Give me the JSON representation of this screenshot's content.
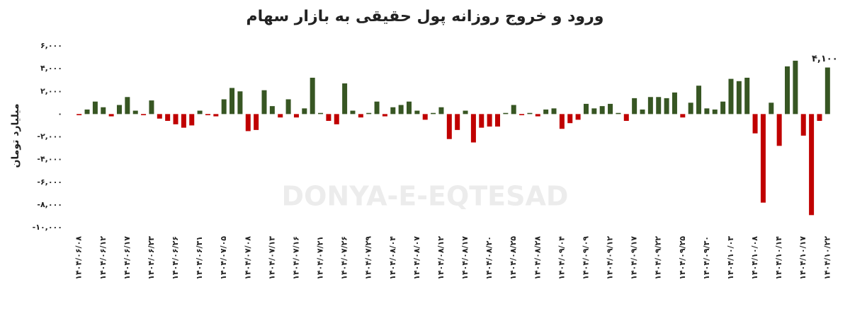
{
  "chart_data": {
    "type": "bar",
    "title": "ورود و خروج روزانه پول حقیقی به بازار سهام",
    "ylabel": "میلیارد تومان",
    "watermark": "DONYA-E-EQTESAD",
    "colors": {
      "positive": "#375623",
      "negative": "#c00000"
    },
    "categories": [
      "۱۴۰۴/۰۶/۰۸",
      null,
      null,
      "۱۴۰۴/۰۶/۱۲",
      null,
      null,
      "۱۴۰۴/۰۶/۱۷",
      null,
      null,
      "۱۴۰۴/۰۶/۲۳",
      null,
      null,
      "۱۴۰۴/۰۶/۲۶",
      null,
      null,
      "۱۴۰۴/۰۶/۳۱",
      null,
      null,
      "۱۴۰۴/۰۷/۰۵",
      null,
      null,
      "۱۴۰۴/۰۷/۰۸",
      null,
      null,
      "۱۴۰۴/۰۷/۱۳",
      null,
      null,
      "۱۴۰۴/۰۷/۱۶",
      null,
      null,
      "۱۴۰۴/۰۷/۲۱",
      null,
      null,
      "۱۴۰۴/۰۷/۲۶",
      null,
      null,
      "۱۴۰۴/۰۷/۲۹",
      null,
      null,
      "۱۴۰۴/۰۸/۰۴",
      null,
      null,
      "۱۴۰۴/۰۸/۰۷",
      null,
      null,
      "۱۴۰۴/۰۸/۱۲",
      null,
      null,
      "۱۴۰۴/۰۸/۱۷",
      null,
      null,
      "۱۴۰۴/۰۸/۲۰",
      null,
      null,
      "۱۴۰۴/۰۸/۲۵",
      null,
      null,
      "۱۴۰۴/۰۸/۲۸",
      null,
      null,
      "۱۴۰۴/۰۹/۰۴",
      null,
      null,
      "۱۴۰۴/۰۹/۰۹",
      null,
      null,
      "۱۴۰۴/۰۹/۱۲",
      null,
      null,
      "۱۴۰۴/۰۹/۱۷",
      null,
      null,
      "۱۴۰۴/۰۹/۲۲",
      null,
      null,
      "۱۴۰۴/۰۹/۲۵",
      null,
      null,
      "۱۴۰۴/۰۹/۳۰",
      null,
      null,
      "۱۴۰۴/۱۰/۰۳",
      null,
      null,
      "۱۴۰۴/۱۰/۰۸",
      null,
      null,
      "۱۴۰۴/۱۰/۱۴",
      null,
      null,
      "۱۴۰۴/۱۰/۱۷",
      null,
      null,
      "۱۴۰۴/۱۰/۲۲"
    ],
    "values": [
      -100,
      400,
      1100,
      600,
      -200,
      800,
      1500,
      300,
      -100,
      1200,
      -400,
      -600,
      -900,
      -1200,
      -1000,
      300,
      -100,
      -200,
      1300,
      2300,
      2000,
      -1500,
      -1400,
      2100,
      700,
      -300,
      1300,
      -300,
      500,
      3200,
      100,
      -600,
      -900,
      2700,
      300,
      -300,
      100,
      1100,
      -200,
      600,
      800,
      1100,
      300,
      -500,
      100,
      600,
      -2200,
      -1400,
      300,
      -2500,
      -1200,
      -1100,
      -1100,
      100,
      800,
      -100,
      100,
      -200,
      400,
      500,
      -1300,
      -800,
      -500,
      900,
      500,
      700,
      900,
      100,
      -600,
      1400,
      400,
      1500,
      1500,
      1400,
      1900,
      -300,
      1000,
      2500,
      500,
      400,
      1100,
      3100,
      2900,
      3200,
      -1700,
      -7800,
      1000,
      -2800,
      4200,
      4700,
      -1900,
      -8900,
      -600,
      4100
    ],
    "value_labels": [
      null,
      null,
      null,
      null,
      null,
      null,
      null,
      null,
      null,
      null,
      null,
      null,
      null,
      null,
      null,
      null,
      null,
      null,
      null,
      null,
      null,
      null,
      null,
      null,
      null,
      null,
      null,
      null,
      null,
      null,
      null,
      null,
      null,
      null,
      null,
      null,
      null,
      null,
      null,
      null,
      null,
      null,
      null,
      null,
      null,
      null,
      null,
      null,
      null,
      null,
      null,
      null,
      null,
      null,
      null,
      null,
      null,
      null,
      null,
      null,
      null,
      null,
      null,
      null,
      null,
      null,
      null,
      null,
      null,
      null,
      null,
      null,
      null,
      null,
      null,
      null,
      null,
      null,
      null,
      null,
      null,
      null,
      null,
      null,
      null,
      null,
      null,
      null,
      null,
      null,
      null,
      null,
      null,
      "۴,۱۰۰"
    ],
    "ylim": [
      -10000,
      6000
    ],
    "yticks": [
      {
        "value": -10000,
        "label": "-۱۰,۰۰۰"
      },
      {
        "value": -8000,
        "label": "-۸,۰۰۰"
      },
      {
        "value": -6000,
        "label": "-۶,۰۰۰"
      },
      {
        "value": -4000,
        "label": "-۴,۰۰۰"
      },
      {
        "value": -2000,
        "label": "-۲,۰۰۰"
      },
      {
        "value": 0,
        "label": "۰"
      },
      {
        "value": 2000,
        "label": "۲,۰۰۰"
      },
      {
        "value": 4000,
        "label": "۴,۰۰۰"
      },
      {
        "value": 6000,
        "label": "۶,۰۰۰"
      }
    ]
  }
}
